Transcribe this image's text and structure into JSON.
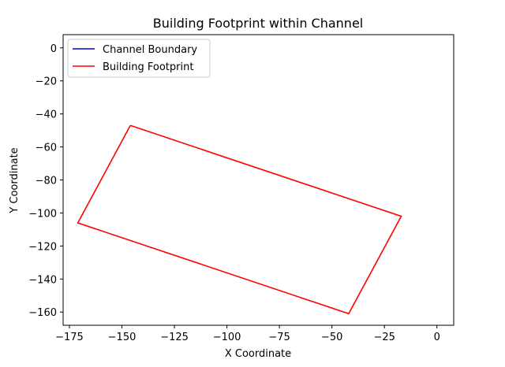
{
  "chart_data": {
    "type": "line",
    "title": "Building Footprint within Channel",
    "xlabel": "X Coordinate",
    "ylabel": "Y Coordinate",
    "xlim": [
      -178,
      8
    ],
    "ylim": [
      -168,
      8
    ],
    "xticks": [
      -175,
      -150,
      -125,
      -100,
      -75,
      -50,
      -25,
      0
    ],
    "yticks": [
      0,
      -20,
      -40,
      -60,
      -80,
      -100,
      -120,
      -140,
      -160
    ],
    "xtick_labels": [
      "−175",
      "−150",
      "−125",
      "−100",
      "−75",
      "−50",
      "−25",
      "0"
    ],
    "ytick_labels": [
      "0",
      "−20",
      "−40",
      "−60",
      "−80",
      "−100",
      "−120",
      "−140",
      "−160"
    ],
    "grid": false,
    "legend_position": "top-left",
    "series": [
      {
        "name": "Channel Boundary",
        "color": "#0000cc",
        "x": [],
        "y": []
      },
      {
        "name": "Building Footprint",
        "color": "#ff0000",
        "x": [
          -146,
          -17,
          -42,
          -171,
          -146
        ],
        "y": [
          -47,
          -102,
          -161,
          -106,
          -47
        ]
      }
    ]
  }
}
